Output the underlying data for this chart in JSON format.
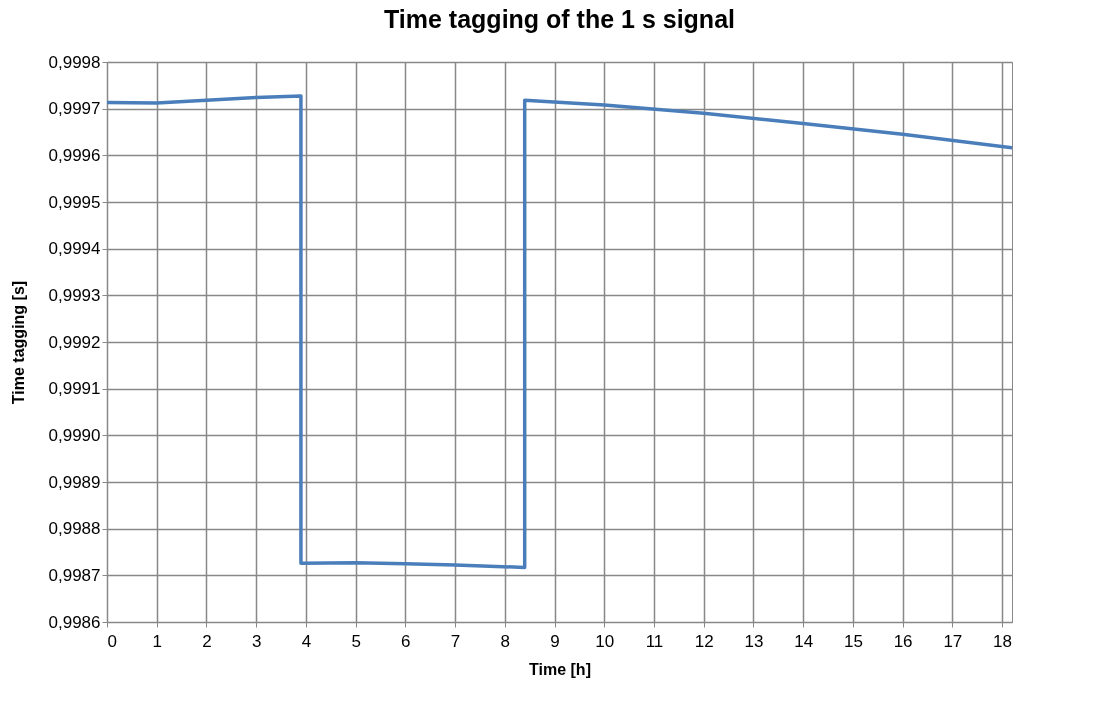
{
  "chart_data": {
    "type": "line",
    "title": "Time tagging of the 1 s signal",
    "xlabel": "Time [h]",
    "ylabel": "Time tagging [s]",
    "series": [
      {
        "color": "#4a7ebb",
        "x": [
          0,
          1,
          2,
          3,
          3.9,
          3.9,
          5,
          6,
          7,
          8.4,
          8.4,
          10,
          12,
          14,
          16,
          18.2
        ],
        "values": [
          0.999713,
          0.999712,
          0.999718,
          0.999724,
          0.999727,
          0.998726,
          0.998727,
          0.998725,
          0.998722,
          0.998717,
          0.999718,
          0.999708,
          0.99969,
          0.999668,
          0.999645,
          0.999616
        ]
      }
    ],
    "xlim": [
      0,
      18.2
    ],
    "xticks": [
      0,
      1,
      2,
      3,
      4,
      5,
      6,
      7,
      8,
      9,
      10,
      11,
      12,
      13,
      14,
      15,
      16,
      17,
      18
    ],
    "ylim": [
      0.9986,
      0.9998
    ],
    "yticks": [
      {
        "value": 0.9986,
        "label": "0,9986"
      },
      {
        "value": 0.9987,
        "label": "0,9987"
      },
      {
        "value": 0.9988,
        "label": "0,9988"
      },
      {
        "value": 0.9989,
        "label": "0,9989"
      },
      {
        "value": 0.999,
        "label": "0,9990"
      },
      {
        "value": 0.9991,
        "label": "0,9991"
      },
      {
        "value": 0.9992,
        "label": "0,9992"
      },
      {
        "value": 0.9993,
        "label": "0,9993"
      },
      {
        "value": 0.9994,
        "label": "0,9994"
      },
      {
        "value": 0.9995,
        "label": "0,9995"
      },
      {
        "value": 0.9996,
        "label": "0,9996"
      },
      {
        "value": 0.9997,
        "label": "0,9997"
      },
      {
        "value": 0.9998,
        "label": "0,9998"
      }
    ],
    "grid": true,
    "marker": "none",
    "line_style": "solid"
  }
}
